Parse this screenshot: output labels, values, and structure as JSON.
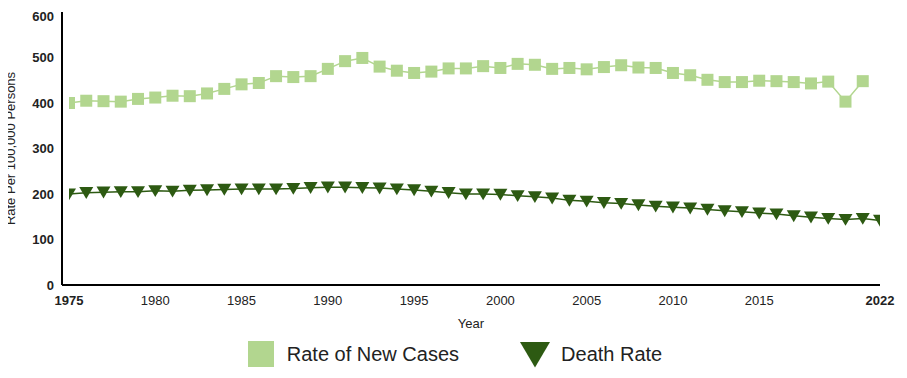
{
  "chart_data": {
    "type": "line",
    "x_label": "Year",
    "y_label": "Rate Per 100,000 Persons",
    "x": [
      1975,
      1976,
      1977,
      1978,
      1979,
      1980,
      1981,
      1982,
      1983,
      1984,
      1985,
      1986,
      1987,
      1988,
      1989,
      1990,
      1991,
      1992,
      1993,
      1994,
      1995,
      1996,
      1997,
      1998,
      1999,
      2000,
      2001,
      2002,
      2003,
      2004,
      2005,
      2006,
      2007,
      2008,
      2009,
      2010,
      2011,
      2012,
      2013,
      2014,
      2015,
      2016,
      2017,
      2018,
      2019,
      2020,
      2021,
      2022
    ],
    "series": [
      {
        "name": "Rate of New Cases",
        "color": "#b2d68f",
        "marker": "square",
        "values": [
          400,
          405,
          404,
          403,
          409,
          412,
          416,
          415,
          421,
          431,
          441,
          444,
          459,
          457,
          459,
          475,
          492,
          499,
          480,
          471,
          466,
          469,
          476,
          476,
          481,
          477,
          486,
          484,
          475,
          477,
          474,
          479,
          483,
          478,
          477,
          466,
          461,
          451,
          446,
          446,
          449,
          448,
          446,
          443,
          447,
          403,
          448,
          null
        ]
      },
      {
        "name": "Death Rate",
        "color": "#2d5a12",
        "marker": "triangle-down",
        "values": [
          200,
          203,
          204,
          205,
          205,
          207,
          206,
          208,
          209,
          210,
          211,
          211,
          211,
          212,
          214,
          215,
          215,
          214,
          213,
          211,
          209,
          206,
          203,
          200,
          200,
          199,
          196,
          194,
          191,
          186,
          184,
          181,
          179,
          176,
          173,
          171,
          169,
          166,
          163,
          161,
          158,
          156,
          152,
          149,
          146,
          144,
          146,
          142
        ]
      }
    ],
    "xlim": [
      1975,
      2022
    ],
    "xticks": [
      1975,
      1980,
      1985,
      1990,
      1995,
      2000,
      2005,
      2010,
      2015,
      2022
    ],
    "ylim": [
      0,
      600
    ],
    "yticks": [
      0,
      100,
      200,
      300,
      400,
      500,
      600
    ],
    "grid": false,
    "legend": "bottom"
  }
}
